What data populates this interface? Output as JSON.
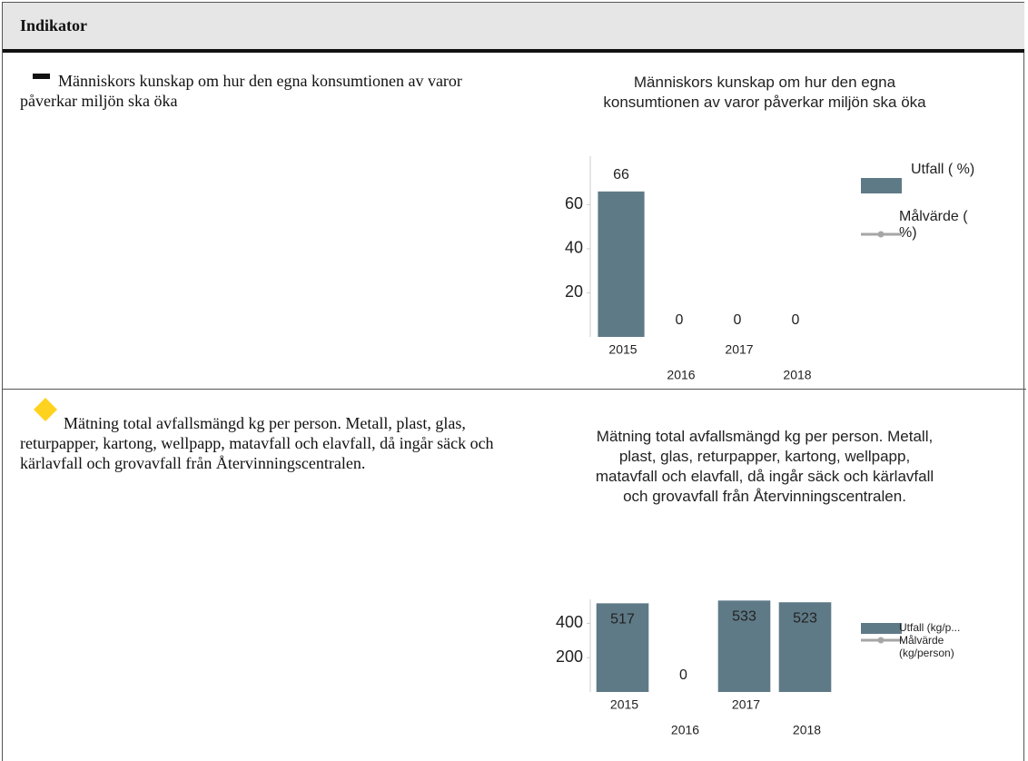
{
  "header": {
    "title": "Indikator"
  },
  "rows": [
    {
      "text": "Människors kunskap om hur den egna konsumtionen av varor påverkar miljön ska öka",
      "chart": {
        "type": "bar",
        "title": "Människors kunskap om hur den egna konsumtionen av varor påverkar miljön ska öka",
        "categories": [
          "2015",
          "2016",
          "2017",
          "2018"
        ],
        "series": [
          {
            "name": "Utfall ( %)",
            "color": "#5f7a87",
            "values": [
              66,
              0,
              0,
              0
            ]
          },
          {
            "name": "Målvärde ( %)",
            "color": "#a6a6a6",
            "values": [
              null,
              null,
              null,
              null
            ]
          }
        ],
        "ylim": [
          0,
          82
        ],
        "yticks": [
          20,
          40,
          60
        ]
      }
    },
    {
      "text": "Mätning total avfallsmängd kg per person. Metall, plast, glas, returpapper, kartong, wellpapp, matavfall och elavfall, då ingår säck och kärlavfall och grovavfall från Återvinningscentralen.",
      "chart": {
        "type": "bar",
        "title": "Mätning total avfallsmängd kg per person. Metall, plast, glas, returpapper, kartong, wellpapp, matavfall och elavfall, då ingår säck och kärlavfall och grovavfall från Återvinningscentralen.",
        "categories": [
          "2015",
          "2016",
          "2017",
          "2018"
        ],
        "series": [
          {
            "name": "Utfall (kg/p...",
            "color": "#5f7a87",
            "values": [
              517,
              0,
              533,
              523
            ]
          },
          {
            "name": "Målvärde (kg/person)",
            "color": "#a6a6a6",
            "values": [
              null,
              null,
              null,
              null
            ]
          }
        ],
        "ylim": [
          0,
          540
        ],
        "yticks": [
          200,
          400
        ]
      }
    }
  ]
}
